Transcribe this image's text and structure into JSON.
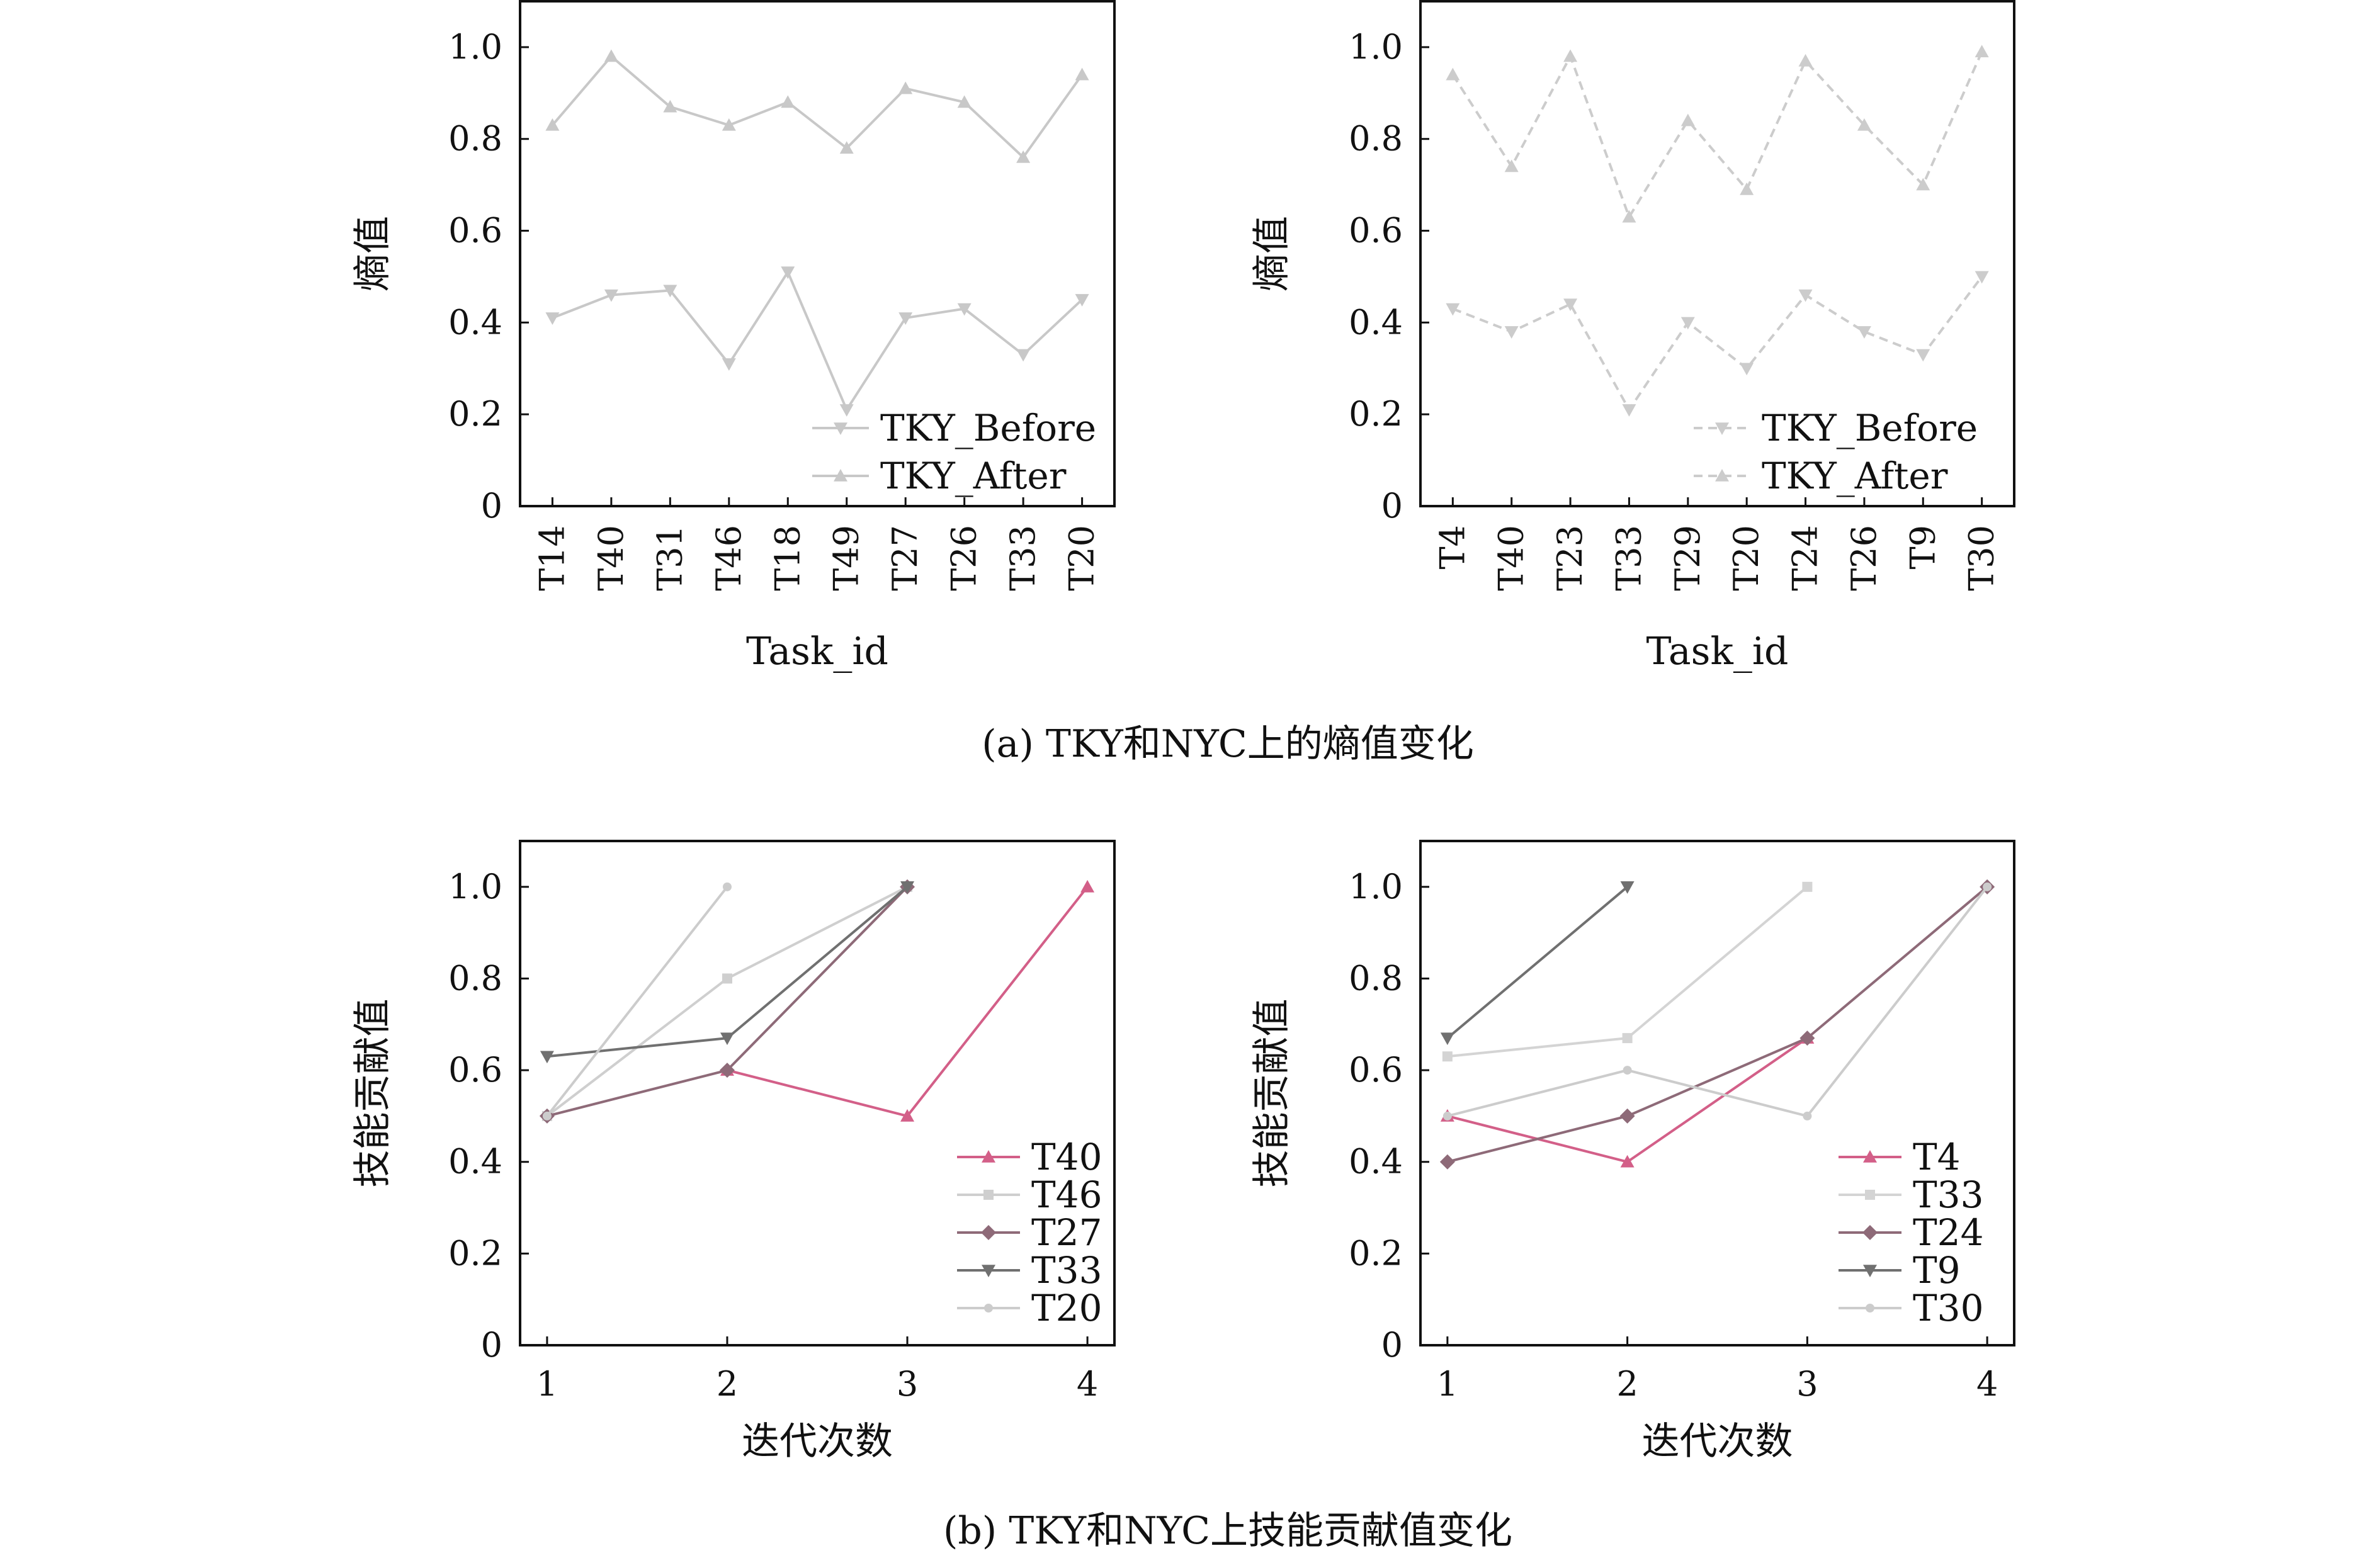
{
  "captions": {
    "a": "(a)  TKY和NYC上的熵值变化",
    "b": "(b)  TKY和NYC上技能贡献值变化"
  },
  "chart_data": [
    {
      "id": "a-left",
      "type": "line",
      "xlabel": "Task_id",
      "ylabel": "熵值",
      "ylim": [
        0,
        1.1
      ],
      "yticks": [
        0,
        0.2,
        0.4,
        0.6,
        0.8,
        1.0
      ],
      "ytick_labels": [
        "0",
        "0.2",
        "0.4",
        "0.6",
        "0.8",
        "1.0"
      ],
      "categories": [
        "T14",
        "T40",
        "T31",
        "T46",
        "T18",
        "T49",
        "T27",
        "T26",
        "T33",
        "T20"
      ],
      "legend_position": "bottom-right",
      "series": [
        {
          "name": "TKY_Before",
          "marker": "triangle-down",
          "dash": "solid",
          "color": "#c8c8c8",
          "values": [
            0.41,
            0.46,
            0.47,
            0.31,
            0.51,
            0.21,
            0.41,
            0.43,
            0.33,
            0.45
          ]
        },
        {
          "name": "TKY_After",
          "marker": "triangle-up",
          "dash": "solid",
          "color": "#c8c8c8",
          "values": [
            0.83,
            0.98,
            0.87,
            0.83,
            0.88,
            0.78,
            0.91,
            0.88,
            0.76,
            0.94
          ]
        }
      ]
    },
    {
      "id": "a-right",
      "type": "line",
      "xlabel": "Task_id",
      "ylabel": "熵值",
      "ylim": [
        0,
        1.1
      ],
      "yticks": [
        0,
        0.2,
        0.4,
        0.6,
        0.8,
        1.0
      ],
      "ytick_labels": [
        "0",
        "0.2",
        "0.4",
        "0.6",
        "0.8",
        "1.0"
      ],
      "categories": [
        "T4",
        "T40",
        "T23",
        "T33",
        "T29",
        "T20",
        "T24",
        "T26",
        "T9",
        "T30"
      ],
      "legend_position": "bottom-right",
      "series": [
        {
          "name": "TKY_Before",
          "marker": "triangle-down",
          "dash": "dashed",
          "color": "#cccccc",
          "values": [
            0.43,
            0.38,
            0.44,
            0.21,
            0.4,
            0.3,
            0.46,
            0.38,
            0.33,
            0.5
          ]
        },
        {
          "name": "TKY_After",
          "marker": "triangle-up",
          "dash": "dashed",
          "color": "#cccccc",
          "values": [
            0.94,
            0.74,
            0.98,
            0.63,
            0.84,
            0.69,
            0.97,
            0.83,
            0.7,
            0.99
          ]
        }
      ]
    },
    {
      "id": "b-left",
      "type": "line",
      "xlabel": "迭代次数",
      "ylabel": "技能贡献值",
      "ylim": [
        0,
        1.1
      ],
      "yticks": [
        0,
        0.2,
        0.4,
        0.6,
        0.8,
        1.0
      ],
      "ytick_labels": [
        "0",
        "0.2",
        "0.4",
        "0.6",
        "0.8",
        "1.0"
      ],
      "xlim": [
        0.85,
        4.15
      ],
      "xticks": [
        1,
        2,
        3,
        4
      ],
      "xtick_labels": [
        "1",
        "2",
        "3",
        "4"
      ],
      "legend_position": "bottom-right",
      "series": [
        {
          "name": "T40",
          "marker": "triangle-up",
          "color": "#d35f88",
          "x": [
            2,
            3,
            4
          ],
          "y": [
            0.6,
            0.5,
            1.0
          ]
        },
        {
          "name": "T46",
          "marker": "square",
          "color": "#cfcfcf",
          "x": [
            1,
            2,
            3
          ],
          "y": [
            0.5,
            0.8,
            1.0
          ]
        },
        {
          "name": "T27",
          "marker": "diamond",
          "color": "#8e6a78",
          "x": [
            1,
            2,
            3
          ],
          "y": [
            0.5,
            0.6,
            1.0
          ]
        },
        {
          "name": "T33",
          "marker": "triangle-down",
          "color": "#707070",
          "x": [
            1,
            2,
            3
          ],
          "y": [
            0.63,
            0.67,
            1.0
          ]
        },
        {
          "name": "T20",
          "marker": "dot",
          "color": "#cccccc",
          "x": [
            1,
            2
          ],
          "y": [
            0.5,
            1.0
          ]
        }
      ]
    },
    {
      "id": "b-right",
      "type": "line",
      "xlabel": "迭代次数",
      "ylabel": "技能贡献值",
      "ylim": [
        0,
        1.1
      ],
      "yticks": [
        0,
        0.2,
        0.4,
        0.6,
        0.8,
        1.0
      ],
      "ytick_labels": [
        "0",
        "0.2",
        "0.4",
        "0.6",
        "0.8",
        "1.0"
      ],
      "xlim": [
        0.85,
        4.15
      ],
      "xticks": [
        1,
        2,
        3,
        4
      ],
      "xtick_labels": [
        "1",
        "2",
        "3",
        "4"
      ],
      "legend_position": "bottom-right",
      "series": [
        {
          "name": "T4",
          "marker": "triangle-up",
          "color": "#d35f88",
          "x": [
            1,
            2,
            3
          ],
          "y": [
            0.5,
            0.4,
            0.67
          ]
        },
        {
          "name": "T33",
          "marker": "square",
          "color": "#d4d4d4",
          "x": [
            1,
            2,
            3
          ],
          "y": [
            0.63,
            0.67,
            1.0
          ]
        },
        {
          "name": "T24",
          "marker": "diamond",
          "color": "#8e6a78",
          "x": [
            1,
            2,
            3,
            4
          ],
          "y": [
            0.4,
            0.5,
            0.67,
            1.0
          ]
        },
        {
          "name": "T9",
          "marker": "triangle-down",
          "color": "#707070",
          "x": [
            1,
            2
          ],
          "y": [
            0.67,
            1.0
          ]
        },
        {
          "name": "T30",
          "marker": "dot",
          "color": "#cccccc",
          "x": [
            1,
            2,
            3,
            4
          ],
          "y": [
            0.5,
            0.6,
            0.5,
            1.0
          ]
        }
      ]
    }
  ]
}
